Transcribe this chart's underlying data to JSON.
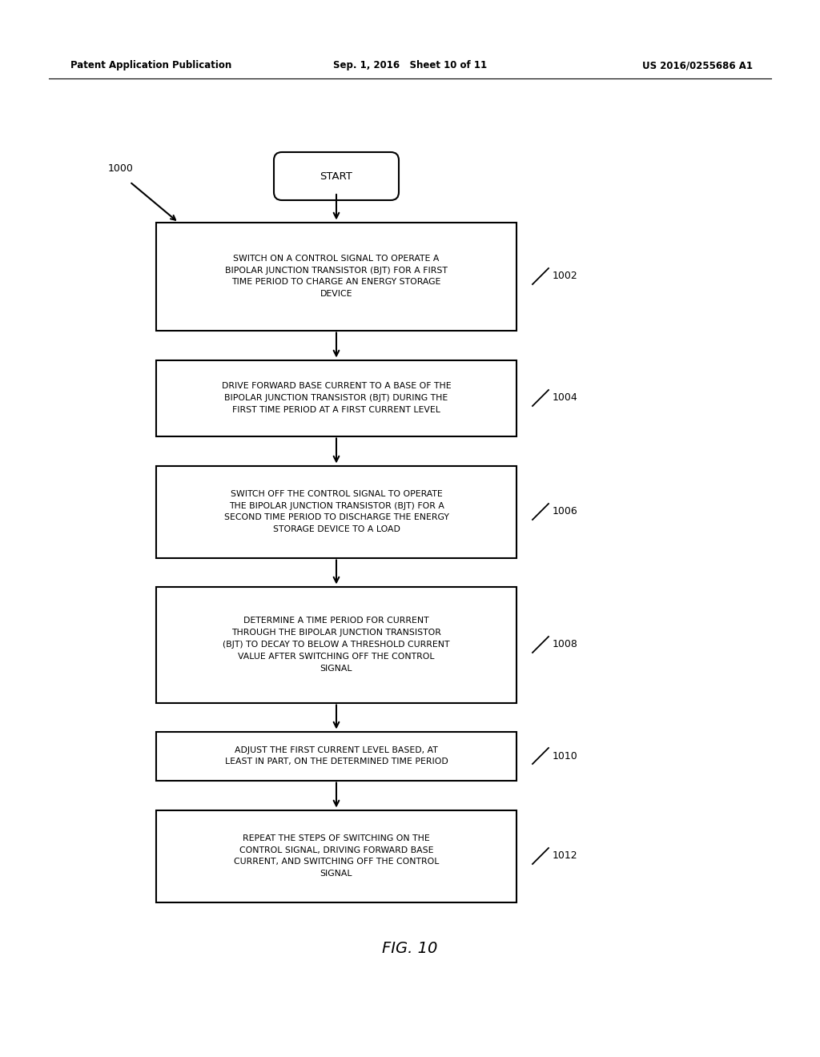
{
  "header_left": "Patent Application Publication",
  "header_mid": "Sep. 1, 2016   Sheet 10 of 11",
  "header_right": "US 2016/0255686 A1",
  "fig_label": "FIG. 10",
  "start_label": "START",
  "diagram_label": "1000",
  "background_color": "#ffffff",
  "boxes": [
    {
      "text": "SWITCH ON A CONTROL SIGNAL TO OPERATE A\nBIPOLAR JUNCTION TRANSISTOR (BJT) FOR A FIRST\nTIME PERIOD TO CHARGE AN ENERGY STORAGE\nDEVICE",
      "label": "1002"
    },
    {
      "text": "DRIVE FORWARD BASE CURRENT TO A BASE OF THE\nBIPOLAR JUNCTION TRANSISTOR (BJT) DURING THE\nFIRST TIME PERIOD AT A FIRST CURRENT LEVEL",
      "label": "1004"
    },
    {
      "text": "SWITCH OFF THE CONTROL SIGNAL TO OPERATE\nTHE BIPOLAR JUNCTION TRANSISTOR (BJT) FOR A\nSECOND TIME PERIOD TO DISCHARGE THE ENERGY\nSTORAGE DEVICE TO A LOAD",
      "label": "1006"
    },
    {
      "text": "DETERMINE A TIME PERIOD FOR CURRENT\nTHROUGH THE BIPOLAR JUNCTION TRANSISTOR\n(BJT) TO DECAY TO BELOW A THRESHOLD CURRENT\nVALUE AFTER SWITCHING OFF THE CONTROL\nSIGNAL",
      "label": "1008"
    },
    {
      "text": "ADJUST THE FIRST CURRENT LEVEL BASED, AT\nLEAST IN PART, ON THE DETERMINED TIME PERIOD",
      "label": "1010"
    },
    {
      "text": "REPEAT THE STEPS OF SWITCHING ON THE\nCONTROL SIGNAL, DRIVING FORWARD BASE\nCURRENT, AND SWITCHING OFF THE CONTROL\nSIGNAL",
      "label": "1012"
    }
  ]
}
